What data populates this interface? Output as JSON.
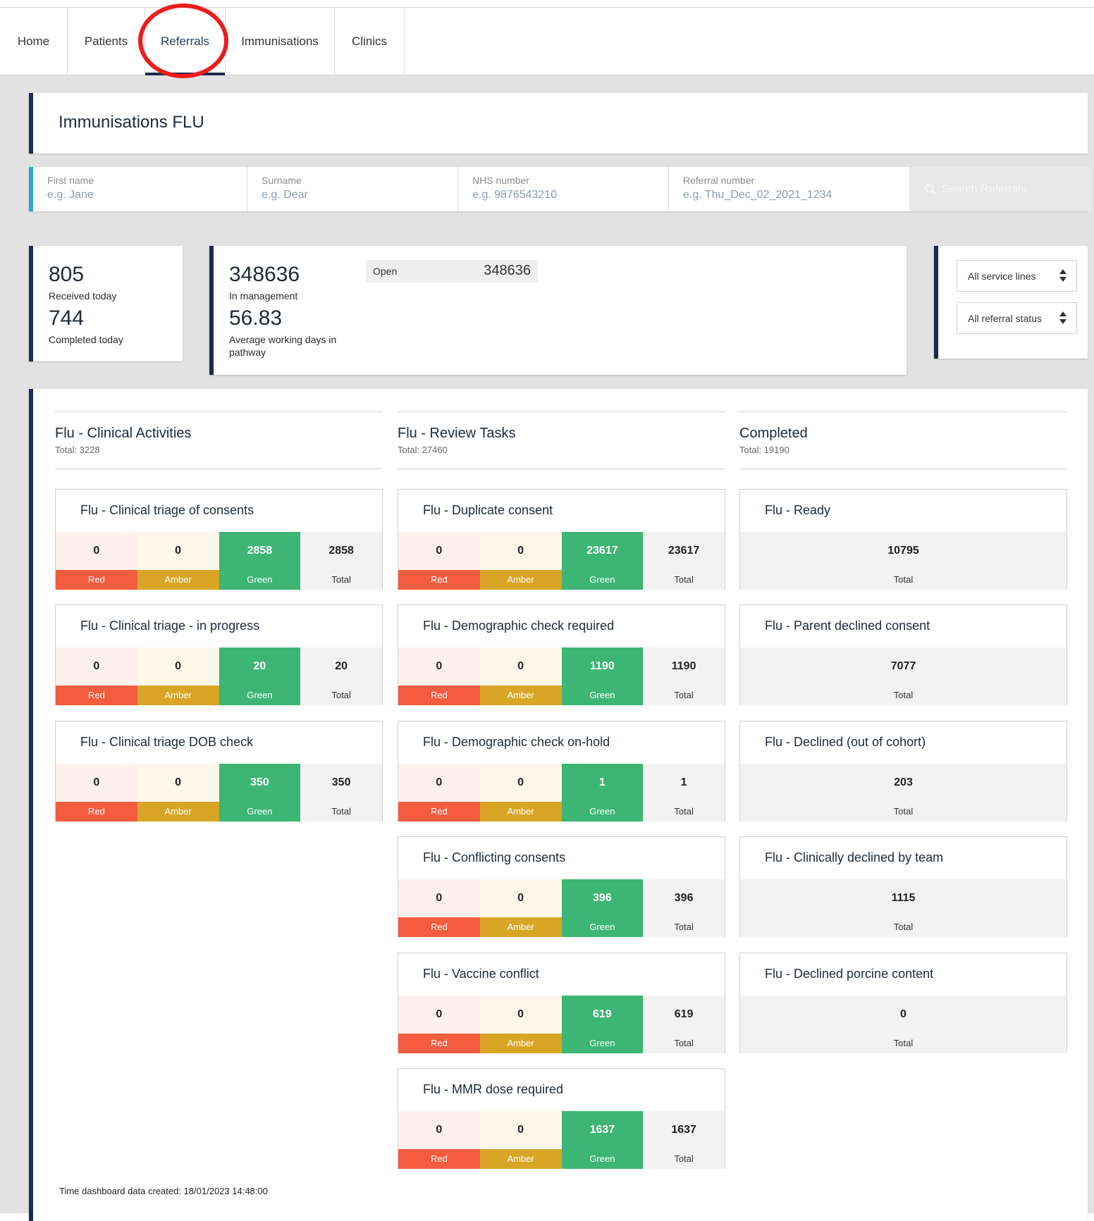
{
  "nav": {
    "tabs": [
      {
        "label": "Home"
      },
      {
        "label": "Patients"
      },
      {
        "label": "Referrals"
      },
      {
        "label": "Immunisations"
      },
      {
        "label": "Clinics"
      }
    ]
  },
  "page_title": "Immunisations FLU",
  "search": {
    "first_name": {
      "label": "First name",
      "placeholder": "e.g. Jane"
    },
    "surname": {
      "label": "Surname",
      "placeholder": "e.g. Dear"
    },
    "nhs": {
      "label": "NHS number",
      "placeholder": "e.g. 9876543210"
    },
    "referral": {
      "label": "Referral number",
      "placeholder": "e.g. Thu_Dec_02_2021_1234"
    },
    "button": "Search Referrals"
  },
  "stats": {
    "received": "805",
    "received_label": "Received today",
    "completed": "744",
    "completed_label": "Completed today",
    "in_management": "348636",
    "in_management_label": "In management",
    "avg_days": "56.83",
    "avg_days_label": "Average working days in pathway",
    "open_label": "Open",
    "open_value": "348636"
  },
  "filters": {
    "service_lines": "All service lines",
    "referral_status": "All referral status"
  },
  "labels": {
    "red": "Red",
    "amber": "Amber",
    "green": "Green",
    "total": "Total"
  },
  "columns": [
    {
      "title": "Flu - Clinical Activities",
      "subtitle": "Total: 3228",
      "tiles": [
        {
          "title": "Flu - Clinical triage of consents",
          "red": "0",
          "amber": "0",
          "green": "2858",
          "total": "2858"
        },
        {
          "title": "Flu - Clinical triage - in progress",
          "red": "0",
          "amber": "0",
          "green": "20",
          "total": "20"
        },
        {
          "title": "Flu - Clinical triage DOB check",
          "red": "0",
          "amber": "0",
          "green": "350",
          "total": "350"
        }
      ]
    },
    {
      "title": "Flu - Review Tasks",
      "subtitle": "Total: 27460",
      "tiles": [
        {
          "title": "Flu - Duplicate consent",
          "red": "0",
          "amber": "0",
          "green": "23617",
          "total": "23617"
        },
        {
          "title": "Flu - Demographic check required",
          "red": "0",
          "amber": "0",
          "green": "1190",
          "total": "1190"
        },
        {
          "title": "Flu - Demographic check on-hold",
          "red": "0",
          "amber": "0",
          "green": "1",
          "total": "1"
        },
        {
          "title": "Flu - Conflicting consents",
          "red": "0",
          "amber": "0",
          "green": "396",
          "total": "396"
        },
        {
          "title": "Flu - Vaccine conflict",
          "red": "0",
          "amber": "0",
          "green": "619",
          "total": "619"
        },
        {
          "title": "Flu - MMR dose required",
          "red": "0",
          "amber": "0",
          "green": "1637",
          "total": "1637"
        }
      ]
    },
    {
      "title": "Completed",
      "subtitle": "Total: 19190",
      "tiles": [
        {
          "title": "Flu - Ready",
          "total": "10795"
        },
        {
          "title": "Flu - Parent declined consent",
          "total": "7077"
        },
        {
          "title": "Flu - Declined (out of cohort)",
          "total": "203"
        },
        {
          "title": "Flu - Clinically declined by team",
          "total": "1115"
        },
        {
          "title": "Flu - Declined porcine content",
          "total": "0"
        }
      ]
    }
  ],
  "footer": "Time dashboard data created: 18/01/2023 14:48:00"
}
